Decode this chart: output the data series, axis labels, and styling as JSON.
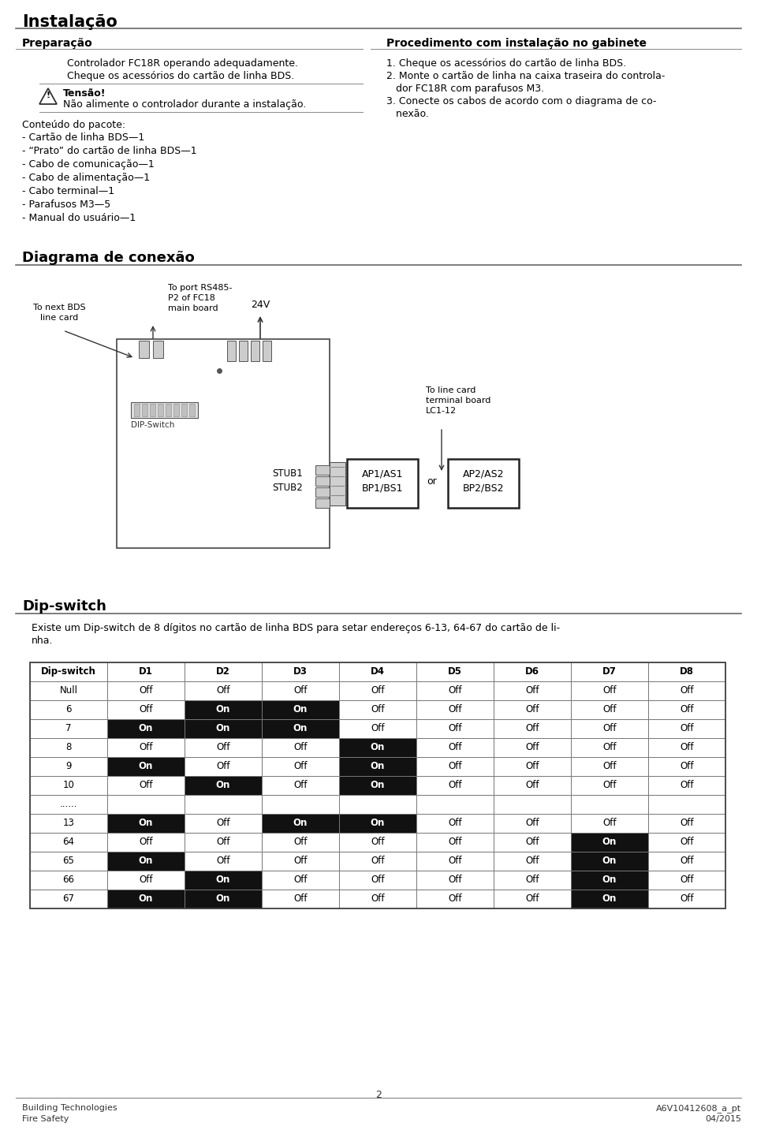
{
  "title": "Instalação",
  "bg_color": "#ffffff",
  "section1_title": "Preparação",
  "section2_title": "Procedimento com instalação no gabinete",
  "prep_lines": [
    "Controlador FC18R operando adequadamente.",
    "Cheque os acessórios do cartão de linha BDS."
  ],
  "warning_title": "Tensão!",
  "warning_text": "Não alimente o controlador durante a instalação.",
  "package_title": "Conteúdo do pacote:",
  "package_items": [
    "- Cartão de linha BDS—1",
    "- “Prato” do cartão de linha BDS—1",
    "- Cabo de comunicação—1",
    "- Cabo de alimentação—1",
    "- Cabo terminal—1",
    "- Parafusos M3—5",
    "- Manual do usuário—1"
  ],
  "proc_item1": "1. Cheque os acessórios do cartão de linha BDS.",
  "proc_item2_l1": "2. Monte o cartão de linha na caixa traseira do controla-",
  "proc_item2_l2": "   dor FC18R com parafusos M3.",
  "proc_item3_l1": "3. Conecte os cabos de acordo com o diagrama de co-",
  "proc_item3_l2": "   nexão.",
  "diagram_title": "Diagrama de conexão",
  "label_next_bds": "To next BDS\nline card",
  "label_rs485": "To port RS485-\nP2 of FC18\nmain board",
  "label_24v": "24V",
  "label_dip": "DIP-Switch",
  "label_stub1": "STUB1",
  "label_stub2": "STUB2",
  "label_ap1": "AP1/AS1\nBP1/BS1",
  "label_or": "or",
  "label_ap2": "AP2/AS2\nBP2/BS2",
  "label_lc": "To line card\nterminal board\nLC1-12",
  "dip_section_title": "Dip-switch",
  "dip_desc_l1": "Existe um Dip-switch de 8 dígitos no cartão de linha BDS para setar endereços 6-13, 64-67 do cartão de li-",
  "dip_desc_l2": "nha.",
  "table_headers": [
    "Dip-switch",
    "D1",
    "D2",
    "D3",
    "D4",
    "D5",
    "D6",
    "D7",
    "D8"
  ],
  "table_rows": [
    [
      "Null",
      "Off",
      "Off",
      "Off",
      "Off",
      "Off",
      "Off",
      "Off",
      "Off"
    ],
    [
      "6",
      "Off",
      "On",
      "On",
      "Off",
      "Off",
      "Off",
      "Off",
      "Off"
    ],
    [
      "7",
      "On",
      "On",
      "On",
      "Off",
      "Off",
      "Off",
      "Off",
      "Off"
    ],
    [
      "8",
      "Off",
      "Off",
      "Off",
      "On",
      "Off",
      "Off",
      "Off",
      "Off"
    ],
    [
      "9",
      "On",
      "Off",
      "Off",
      "On",
      "Off",
      "Off",
      "Off",
      "Off"
    ],
    [
      "10",
      "Off",
      "On",
      "Off",
      "On",
      "Off",
      "Off",
      "Off",
      "Off"
    ],
    [
      "......",
      "",
      "",
      "",
      "",
      "",
      "",
      "",
      ""
    ],
    [
      "13",
      "On",
      "Off",
      "On",
      "On",
      "Off",
      "Off",
      "Off",
      "Off"
    ],
    [
      "64",
      "Off",
      "Off",
      "Off",
      "Off",
      "Off",
      "Off",
      "On",
      "Off"
    ],
    [
      "65",
      "On",
      "Off",
      "Off",
      "Off",
      "Off",
      "Off",
      "On",
      "Off"
    ],
    [
      "66",
      "Off",
      "On",
      "Off",
      "Off",
      "Off",
      "Off",
      "On",
      "Off"
    ],
    [
      "67",
      "On",
      "On",
      "Off",
      "Off",
      "Off",
      "Off",
      "On",
      "Off"
    ]
  ],
  "footer_left1": "Building Technologies",
  "footer_left2": "Fire Safety",
  "footer_right1": "A6V10412608_a_pt",
  "footer_right2": "04/2015",
  "footer_page": "2"
}
